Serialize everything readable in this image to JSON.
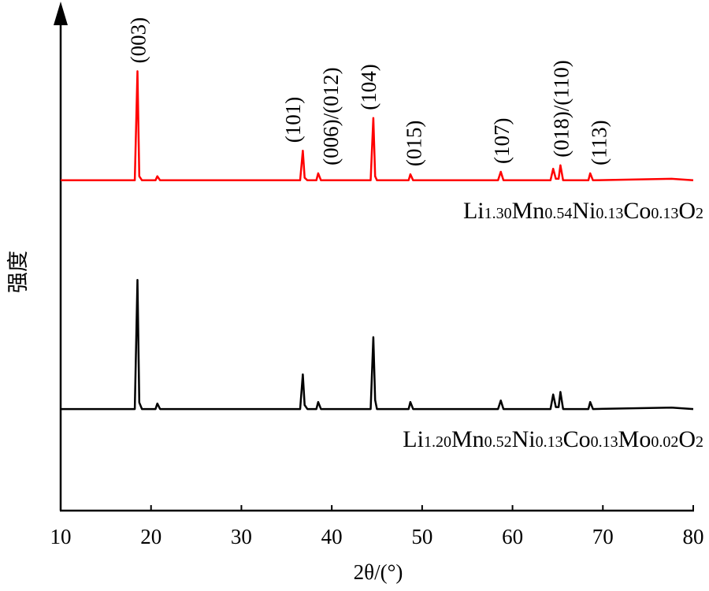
{
  "chart_data": {
    "type": "line",
    "x_label": "2θ/(°)",
    "y_label": "强度",
    "xlim": [
      10,
      80
    ],
    "xticks": [
      10,
      20,
      30,
      40,
      50,
      60,
      70,
      80
    ],
    "ylim": [
      0,
      100
    ],
    "x": [
      10,
      18.2,
      18.5,
      18.7,
      19.0,
      20.5,
      20.7,
      21.0,
      36.5,
      36.8,
      37.0,
      37.3,
      38.3,
      38.5,
      38.8,
      44.3,
      44.6,
      44.8,
      45.0,
      48.5,
      48.7,
      49.0,
      58.4,
      58.7,
      59.0,
      64.2,
      64.5,
      64.8,
      65.1,
      65.3,
      65.6,
      68.4,
      68.6,
      68.9,
      77.6,
      80
    ],
    "series": [
      {
        "name": "Li1.30Mn0.54Ni0.13Co0.13O2",
        "color": "#ff0000",
        "values": [
          65.7,
          65.7,
          87.4,
          66.5,
          65.7,
          65.7,
          66.5,
          65.7,
          65.7,
          71.6,
          66.2,
          65.7,
          65.7,
          67.1,
          65.7,
          65.7,
          78.1,
          66.5,
          65.7,
          65.7,
          66.9,
          65.7,
          65.7,
          67.4,
          65.7,
          65.7,
          68.0,
          66.0,
          66.0,
          68.7,
          65.7,
          65.7,
          67.1,
          65.7,
          66.0,
          65.7
        ]
      },
      {
        "name": "Li1.20Mn0.52Ni0.13Co0.13Mo0.02O2",
        "color": "#000000",
        "values": [
          20.2,
          20.2,
          45.9,
          21.5,
          20.2,
          20.2,
          21.3,
          20.2,
          20.2,
          27.1,
          21.0,
          20.2,
          20.2,
          21.6,
          20.2,
          20.2,
          34.5,
          22.0,
          20.2,
          20.2,
          21.6,
          20.2,
          20.2,
          21.9,
          20.2,
          20.2,
          23.1,
          20.6,
          20.6,
          23.6,
          20.2,
          20.2,
          21.6,
          20.2,
          20.5,
          20.2
        ]
      }
    ],
    "annotations": [
      {
        "text": "(003)",
        "x": 18.6
      },
      {
        "text": "(101)",
        "x": 35.7
      },
      {
        "text": "(006)/(012)",
        "x": 39.9
      },
      {
        "text": "(104)",
        "x": 44.1
      },
      {
        "text": "(015)",
        "x": 49.1
      },
      {
        "text": "(107)",
        "x": 58.8
      },
      {
        "text": "(018)/(110)",
        "x": 65.4
      },
      {
        "text": "(113)",
        "x": 69.6
      }
    ]
  }
}
